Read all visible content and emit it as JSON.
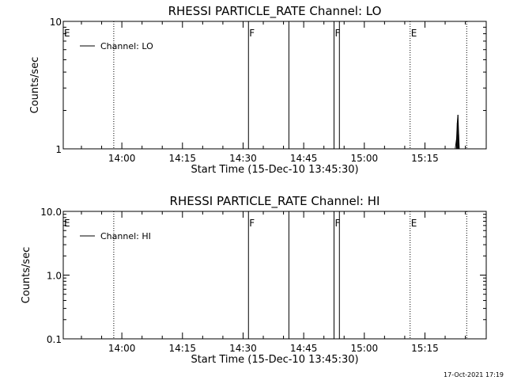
{
  "footer": {
    "timestamp": "17-Oct-2021 17:19"
  },
  "chart_data": [
    {
      "type": "line",
      "title": "RHESSI PARTICLE_RATE Channel: LO",
      "xlabel": "Start Time (15-Dec-10 13:45:30)",
      "ylabel": "Counts/sec",
      "yscale": "log",
      "ylim": [
        1,
        10
      ],
      "xlim": [
        "13:45:30",
        "15:30:10"
      ],
      "x_ticks": [
        "14:00",
        "14:15",
        "14:30",
        "14:45",
        "15:00",
        "15:15"
      ],
      "y_ticks": [
        {
          "value": 1,
          "label": "1"
        },
        {
          "value": 10,
          "label": "10"
        }
      ],
      "legend": {
        "position": "top-left",
        "entries": [
          "Channel: LO"
        ]
      },
      "series": [
        {
          "name": "Channel: LO",
          "points": [
            {
              "x": "15:22:30",
              "y": 1.0
            },
            {
              "x": "15:22:50",
              "y": 1.2
            },
            {
              "x": "15:23:00",
              "y": 1.6
            },
            {
              "x": "15:23:10",
              "y": 1.85
            },
            {
              "x": "15:23:20",
              "y": 1.3
            },
            {
              "x": "15:23:30",
              "y": 1.0
            }
          ]
        }
      ],
      "events": [
        {
          "time": "13:45:30",
          "style": "dotted",
          "label": "E"
        },
        {
          "time": "13:58:00",
          "style": "dotted",
          "label": ""
        },
        {
          "time": "14:31:20",
          "style": "solid",
          "label": "F"
        },
        {
          "time": "14:41:20",
          "style": "solid",
          "label": ""
        },
        {
          "time": "14:52:30",
          "style": "solid",
          "label": "F"
        },
        {
          "time": "14:53:50",
          "style": "solid",
          "label": ""
        },
        {
          "time": "15:11:20",
          "style": "dotted",
          "label": "E"
        },
        {
          "time": "15:25:20",
          "style": "dotted",
          "label": ""
        }
      ]
    },
    {
      "type": "line",
      "title": "RHESSI PARTICLE_RATE Channel: HI",
      "xlabel": "Start Time (15-Dec-10 13:45:30)",
      "ylabel": "Counts/sec",
      "yscale": "log",
      "ylim": [
        0.1,
        10
      ],
      "xlim": [
        "13:45:30",
        "15:30:10"
      ],
      "x_ticks": [
        "14:00",
        "14:15",
        "14:30",
        "14:45",
        "15:00",
        "15:15"
      ],
      "y_ticks": [
        {
          "value": 0.1,
          "label": "0.1"
        },
        {
          "value": 1,
          "label": "1.0"
        },
        {
          "value": 10,
          "label": "10.0"
        }
      ],
      "legend": {
        "position": "top-left",
        "entries": [
          "Channel: HI"
        ]
      },
      "series": [
        {
          "name": "Channel: HI",
          "points": []
        }
      ],
      "events": [
        {
          "time": "13:45:30",
          "style": "dotted",
          "label": "E"
        },
        {
          "time": "13:58:00",
          "style": "dotted",
          "label": ""
        },
        {
          "time": "14:31:20",
          "style": "solid",
          "label": "F"
        },
        {
          "time": "14:41:20",
          "style": "solid",
          "label": ""
        },
        {
          "time": "14:52:30",
          "style": "solid",
          "label": "F"
        },
        {
          "time": "14:53:50",
          "style": "solid",
          "label": ""
        },
        {
          "time": "15:11:20",
          "style": "dotted",
          "label": "E"
        },
        {
          "time": "15:25:20",
          "style": "dotted",
          "label": ""
        }
      ]
    }
  ]
}
